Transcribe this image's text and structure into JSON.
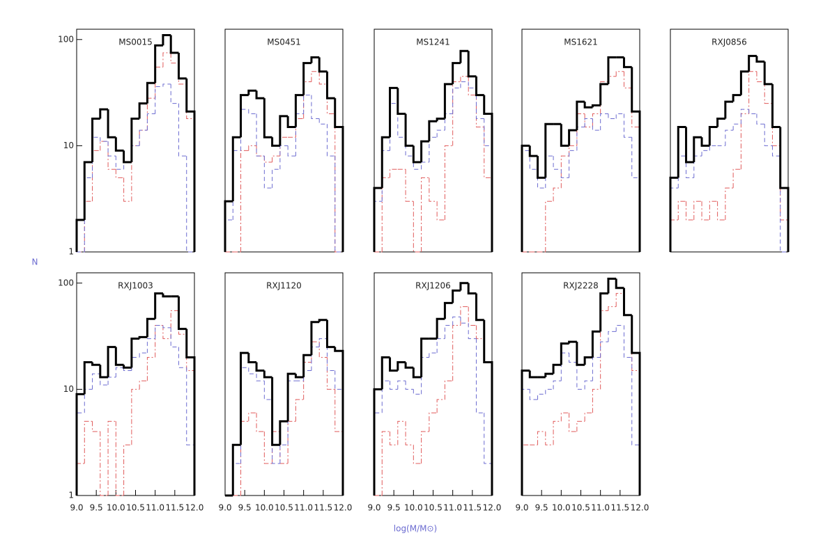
{
  "x_label": "log(M/M⊙)",
  "y_label": "N",
  "chart_data": [
    {
      "type": "histogram",
      "title": "MS0015",
      "bins": [
        9,
        9.2,
        9.4,
        9.6,
        9.8,
        10,
        10.2,
        10.4,
        10.6,
        10.8,
        11,
        11.2,
        11.4,
        11.6,
        11.8,
        12
      ],
      "xlim": [
        9,
        12
      ],
      "ylim": [
        1,
        125
      ],
      "log_y": true,
      "yticks": [
        1,
        10,
        100
      ],
      "series": [
        {
          "color": "#000000",
          "style": "solid",
          "values": [
            2,
            7,
            18,
            22,
            12,
            9,
            7,
            18,
            25,
            39,
            88,
            110,
            75,
            43,
            21
          ]
        },
        {
          "color": "#6b6bd0",
          "style": "dashed",
          "values": [
            1,
            5,
            12,
            11,
            8,
            6,
            7,
            10,
            14,
            20,
            36,
            38,
            25,
            8,
            1
          ]
        },
        {
          "color": "#e05a5a",
          "style": "dashdot",
          "values": [
            1,
            3,
            9,
            11,
            6,
            5,
            3,
            10,
            14,
            28,
            55,
            75,
            60,
            38,
            18
          ]
        }
      ]
    },
    {
      "type": "histogram",
      "title": "MS0451",
      "bins": [
        9,
        9.2,
        9.4,
        9.6,
        9.8,
        10,
        10.2,
        10.4,
        10.6,
        10.8,
        11,
        11.2,
        11.4,
        11.6,
        11.8,
        12
      ],
      "xlim": [
        9,
        12
      ],
      "ylim": [
        1,
        125
      ],
      "log_y": true,
      "series": [
        {
          "color": "#000000",
          "style": "solid",
          "values": [
            3,
            12,
            30,
            33,
            28,
            12,
            10,
            19,
            15,
            30,
            60,
            68,
            50,
            28,
            15
          ]
        },
        {
          "color": "#6b6bd0",
          "style": "dashed",
          "values": [
            2,
            9,
            22,
            20,
            8,
            4,
            6,
            10,
            8,
            20,
            30,
            18,
            16,
            8,
            1
          ]
        },
        {
          "color": "#e05a5a",
          "style": "dashdot",
          "values": [
            1,
            1,
            9,
            10,
            8,
            7,
            8,
            12,
            12,
            18,
            40,
            50,
            38,
            20,
            1
          ]
        }
      ]
    },
    {
      "type": "histogram",
      "title": "MS1241",
      "bins": [
        9,
        9.2,
        9.4,
        9.6,
        9.8,
        10,
        10.2,
        10.4,
        10.6,
        10.8,
        11,
        11.2,
        11.4,
        11.6,
        11.8,
        12
      ],
      "xlim": [
        9,
        12
      ],
      "ylim": [
        1,
        125
      ],
      "log_y": true,
      "series": [
        {
          "color": "#000000",
          "style": "solid",
          "values": [
            4,
            12,
            35,
            20,
            10,
            7,
            11,
            17,
            18,
            38,
            60,
            78,
            45,
            30,
            20
          ]
        },
        {
          "color": "#6b6bd0",
          "style": "dashed",
          "values": [
            3,
            9,
            25,
            12,
            8,
            6,
            7,
            12,
            14,
            20,
            35,
            40,
            35,
            18,
            10
          ]
        },
        {
          "color": "#e05a5a",
          "style": "dashdot",
          "values": [
            1,
            5,
            6,
            6,
            3,
            1,
            5,
            3,
            2,
            10,
            40,
            45,
            30,
            15,
            5
          ]
        }
      ]
    },
    {
      "type": "histogram",
      "title": "MS1621",
      "bins": [
        9,
        9.2,
        9.4,
        9.6,
        9.8,
        10,
        10.2,
        10.4,
        10.6,
        10.8,
        11,
        11.2,
        11.4,
        11.6,
        11.8,
        12
      ],
      "xlim": [
        9,
        12
      ],
      "ylim": [
        1,
        125
      ],
      "log_y": true,
      "series": [
        {
          "color": "#000000",
          "style": "solid",
          "values": [
            10,
            8,
            5,
            16,
            16,
            10,
            14,
            26,
            23,
            24,
            38,
            68,
            68,
            55,
            21
          ]
        },
        {
          "color": "#6b6bd0",
          "style": "dashed",
          "values": [
            9,
            6,
            4,
            8,
            6,
            5,
            9,
            15,
            18,
            14,
            20,
            18,
            20,
            12,
            5
          ]
        },
        {
          "color": "#e05a5a",
          "style": "dashdot",
          "values": [
            1,
            1,
            1,
            3,
            4,
            8,
            10,
            20,
            15,
            20,
            40,
            45,
            50,
            35,
            15
          ]
        }
      ]
    },
    {
      "type": "histogram",
      "title": "RXJ0856",
      "bins": [
        9,
        9.2,
        9.4,
        9.6,
        9.8,
        10,
        10.2,
        10.4,
        10.6,
        10.8,
        11,
        11.2,
        11.4,
        11.6,
        11.8,
        12
      ],
      "xlim": [
        9,
        12
      ],
      "ylim": [
        1,
        125
      ],
      "log_y": true,
      "series": [
        {
          "color": "#000000",
          "style": "solid",
          "values": [
            5,
            15,
            7,
            12,
            10,
            15,
            18,
            26,
            30,
            50,
            70,
            62,
            38,
            15,
            4
          ]
        },
        {
          "color": "#6b6bd0",
          "style": "dashed",
          "values": [
            4,
            8,
            5,
            8,
            9,
            10,
            10,
            14,
            16,
            22,
            20,
            16,
            10,
            8,
            1
          ]
        },
        {
          "color": "#e05a5a",
          "style": "dashdot",
          "values": [
            2,
            3,
            2,
            3,
            2,
            3,
            2,
            4,
            6,
            20,
            50,
            40,
            25,
            10,
            2
          ]
        }
      ]
    },
    {
      "type": "histogram",
      "title": "RXJ1003",
      "bins": [
        9,
        9.2,
        9.4,
        9.6,
        9.8,
        10,
        10.2,
        10.4,
        10.6,
        10.8,
        11,
        11.2,
        11.4,
        11.6,
        11.8,
        12
      ],
      "xlim": [
        9,
        12
      ],
      "ylim": [
        1,
        125
      ],
      "log_y": true,
      "yticks": [
        1,
        10,
        100
      ],
      "xticks": [
        {
          "value": 9,
          "label": "9.0"
        },
        9.5,
        {
          "value": 10,
          "label": "10.0"
        },
        10.5,
        {
          "value": 11,
          "label": "11.0"
        },
        11.5,
        {
          "value": 12,
          "label": "12.0"
        }
      ],
      "series": [
        {
          "color": "#000000",
          "style": "solid",
          "values": [
            9,
            18,
            17,
            13,
            25,
            17,
            16,
            30,
            31,
            46,
            80,
            75,
            75,
            37,
            20
          ]
        },
        {
          "color": "#6b6bd0",
          "style": "dashed",
          "values": [
            6,
            10,
            14,
            11,
            13,
            16,
            15,
            20,
            22,
            30,
            40,
            38,
            25,
            16,
            3
          ]
        },
        {
          "color": "#e05a5a",
          "style": "dashdot",
          "values": [
            2,
            5,
            4,
            1,
            5,
            1,
            3,
            10,
            12,
            20,
            40,
            30,
            55,
            33,
            15
          ]
        }
      ]
    },
    {
      "type": "histogram",
      "title": "RXJ1120",
      "bins": [
        9,
        9.2,
        9.4,
        9.6,
        9.8,
        10,
        10.2,
        10.4,
        10.6,
        10.8,
        11,
        11.2,
        11.4,
        11.6,
        11.8,
        12
      ],
      "xlim": [
        9,
        12
      ],
      "ylim": [
        1,
        125
      ],
      "log_y": true,
      "xticks": [
        {
          "value": 9,
          "label": "9.0"
        },
        9.5,
        {
          "value": 10,
          "label": "10.0"
        },
        10.5,
        {
          "value": 11,
          "label": "11.0"
        },
        11.5,
        {
          "value": 12,
          "label": "12.0"
        }
      ],
      "series": [
        {
          "color": "#000000",
          "style": "solid",
          "values": [
            1,
            3,
            22,
            18,
            15,
            13,
            3,
            5,
            14,
            13,
            21,
            43,
            45,
            25,
            23
          ]
        },
        {
          "color": "#6b6bd0",
          "style": "dashed",
          "values": [
            1,
            2,
            16,
            14,
            12,
            8,
            2,
            3,
            12,
            12,
            15,
            25,
            30,
            15,
            10
          ]
        },
        {
          "color": "#e05a5a",
          "style": "dashdot",
          "values": [
            1,
            1,
            5,
            6,
            4,
            2,
            4,
            2,
            5,
            8,
            18,
            28,
            20,
            10,
            4
          ]
        }
      ]
    },
    {
      "type": "histogram",
      "title": "RXJ1206",
      "bins": [
        9,
        9.2,
        9.4,
        9.6,
        9.8,
        10,
        10.2,
        10.4,
        10.6,
        10.8,
        11,
        11.2,
        11.4,
        11.6,
        11.8,
        12
      ],
      "xlim": [
        9,
        12
      ],
      "ylim": [
        1,
        125
      ],
      "log_y": true,
      "xticks": [
        {
          "value": 9,
          "label": "9.0"
        },
        9.5,
        {
          "value": 10,
          "label": "10.0"
        },
        10.5,
        {
          "value": 11,
          "label": "11.0"
        },
        11.5,
        {
          "value": 12,
          "label": "12.0"
        }
      ],
      "series": [
        {
          "color": "#000000",
          "style": "solid",
          "values": [
            10,
            20,
            15,
            18,
            16,
            13,
            30,
            30,
            46,
            65,
            85,
            100,
            80,
            45,
            18
          ]
        },
        {
          "color": "#6b6bd0",
          "style": "dashed",
          "values": [
            6,
            12,
            10,
            12,
            10,
            9,
            20,
            22,
            30,
            40,
            48,
            42,
            30,
            6,
            2
          ]
        },
        {
          "color": "#e05a5a",
          "style": "dashdot",
          "values": [
            1,
            4,
            3,
            5,
            3,
            2,
            4,
            6,
            8,
            12,
            40,
            60,
            40,
            30,
            18
          ]
        }
      ]
    },
    {
      "type": "histogram",
      "title": "RXJ2228",
      "bins": [
        9,
        9.2,
        9.4,
        9.6,
        9.8,
        10,
        10.2,
        10.4,
        10.6,
        10.8,
        11,
        11.2,
        11.4,
        11.6,
        11.8,
        12
      ],
      "xlim": [
        9,
        12
      ],
      "ylim": [
        1,
        125
      ],
      "log_y": true,
      "xticks": [
        {
          "value": 9,
          "label": "9.0"
        },
        9.5,
        {
          "value": 10,
          "label": "10.0"
        },
        10.5,
        {
          "value": 11,
          "label": "11.0"
        },
        11.5,
        {
          "value": 12,
          "label": "12.0"
        }
      ],
      "series": [
        {
          "color": "#000000",
          "style": "solid",
          "values": [
            15,
            13,
            13,
            14,
            17,
            27,
            28,
            17,
            20,
            35,
            80,
            110,
            90,
            50,
            22
          ]
        },
        {
          "color": "#6b6bd0",
          "style": "dashed",
          "values": [
            10,
            8,
            9,
            10,
            12,
            22,
            18,
            10,
            12,
            20,
            28,
            35,
            40,
            20,
            3
          ]
        },
        {
          "color": "#e05a5a",
          "style": "dashdot",
          "values": [
            3,
            3,
            4,
            3,
            5,
            6,
            4,
            5,
            6,
            10,
            55,
            60,
            80,
            50,
            15
          ]
        }
      ]
    }
  ]
}
